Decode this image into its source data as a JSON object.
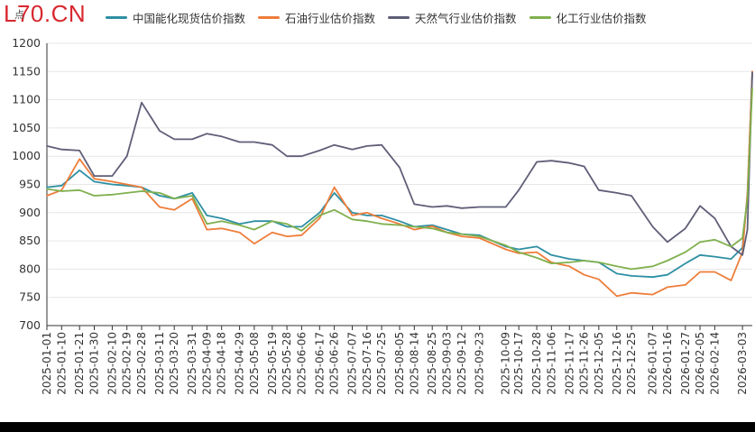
{
  "site_logo": "L70.CN",
  "unit_label": "点",
  "colors": {
    "series": [
      "#2e8fa3",
      "#ee7d3a",
      "#5f5e78",
      "#7fb04e"
    ],
    "grid": "#e6e6e6",
    "axis": "#333333",
    "tick_text": "#333333",
    "bottom_bar": "#000000"
  },
  "chart_data": {
    "type": "line",
    "title": "",
    "xlabel": "",
    "ylabel": "点",
    "ylim": [
      700,
      1200
    ],
    "yticks": [
      700,
      750,
      800,
      850,
      900,
      950,
      1000,
      1050,
      1100,
      1150,
      1200
    ],
    "grid": "horizontal",
    "legend_position": "top",
    "x_ticks": [
      "2025-01-01",
      "2025-01-10",
      "2025-01-21",
      "2025-01-30",
      "2025-02-10",
      "2025-02-19",
      "2025-02-28",
      "2025-03-11",
      "2025-03-20",
      "2025-03-31",
      "2025-04-09",
      "2025-04-18",
      "2025-04-29",
      "2025-05-08",
      "2025-05-19",
      "2025-05-28",
      "2025-06-06",
      "2025-06-17",
      "2025-06-26",
      "2025-07-07",
      "2025-07-16",
      "2025-07-25",
      "2025-08-05",
      "2025-08-14",
      "2025-08-25",
      "2025-09-03",
      "2025-09-12",
      "2025-09-23",
      "2025-10-09",
      "2025-10-17",
      "2025-10-28",
      "2025-11-06",
      "2025-11-17",
      "2025-11-26",
      "2025-12-05",
      "2025-12-16",
      "2025-12-25",
      "2026-01-07",
      "2026-01-16",
      "2026-01-27",
      "2026-02-05",
      "2026-02-14",
      "2026-03-03"
    ],
    "x": [
      "2025-01-01",
      "2025-01-10",
      "2025-01-21",
      "2025-01-30",
      "2025-02-10",
      "2025-02-19",
      "2025-02-28",
      "2025-03-11",
      "2025-03-20",
      "2025-03-31",
      "2025-04-09",
      "2025-04-18",
      "2025-04-29",
      "2025-05-08",
      "2025-05-19",
      "2025-05-28",
      "2025-06-06",
      "2025-06-17",
      "2025-06-26",
      "2025-07-07",
      "2025-07-16",
      "2025-07-25",
      "2025-08-05",
      "2025-08-14",
      "2025-08-25",
      "2025-09-03",
      "2025-09-12",
      "2025-09-23",
      "2025-10-09",
      "2025-10-17",
      "2025-10-28",
      "2025-11-06",
      "2025-11-17",
      "2025-11-26",
      "2025-12-05",
      "2025-12-16",
      "2025-12-25",
      "2026-01-07",
      "2026-01-16",
      "2026-01-27",
      "2026-02-05",
      "2026-02-14",
      "2026-02-24",
      "2026-03-03",
      "2026-03-06",
      "2026-03-09"
    ],
    "series": [
      {
        "name": "中国能化现货估价指数",
        "values": [
          945,
          948,
          975,
          955,
          950,
          948,
          945,
          930,
          925,
          935,
          895,
          890,
          880,
          885,
          885,
          875,
          875,
          900,
          935,
          900,
          895,
          895,
          885,
          875,
          878,
          870,
          862,
          860,
          840,
          835,
          840,
          825,
          818,
          815,
          812,
          792,
          788,
          786,
          790,
          810,
          825,
          822,
          818,
          838,
          930,
          1150
        ]
      },
      {
        "name": "石油行业估价指数",
        "values": [
          930,
          940,
          995,
          960,
          955,
          950,
          945,
          910,
          905,
          925,
          870,
          872,
          865,
          845,
          865,
          858,
          860,
          890,
          945,
          895,
          900,
          890,
          880,
          870,
          876,
          865,
          858,
          855,
          835,
          828,
          830,
          812,
          805,
          790,
          782,
          752,
          758,
          755,
          768,
          772,
          795,
          795,
          780,
          830,
          935,
          1150
        ]
      },
      {
        "name": "天然气行业估价指数",
        "values": [
          1018,
          1012,
          1010,
          965,
          965,
          1000,
          1095,
          1045,
          1030,
          1030,
          1040,
          1035,
          1025,
          1025,
          1020,
          1000,
          1000,
          1010,
          1020,
          1012,
          1018,
          1020,
          980,
          915,
          910,
          912,
          908,
          910,
          910,
          940,
          990,
          992,
          988,
          982,
          940,
          935,
          930,
          875,
          848,
          872,
          912,
          890,
          840,
          825,
          870,
          1148
        ]
      },
      {
        "name": "化工行业估价指数",
        "values": [
          942,
          938,
          940,
          930,
          932,
          935,
          938,
          935,
          925,
          930,
          880,
          885,
          878,
          870,
          885,
          880,
          868,
          895,
          905,
          888,
          885,
          880,
          878,
          875,
          872,
          865,
          862,
          858,
          842,
          830,
          820,
          810,
          812,
          815,
          812,
          805,
          800,
          805,
          815,
          830,
          848,
          852,
          840,
          855,
          925,
          1120
        ]
      }
    ]
  }
}
